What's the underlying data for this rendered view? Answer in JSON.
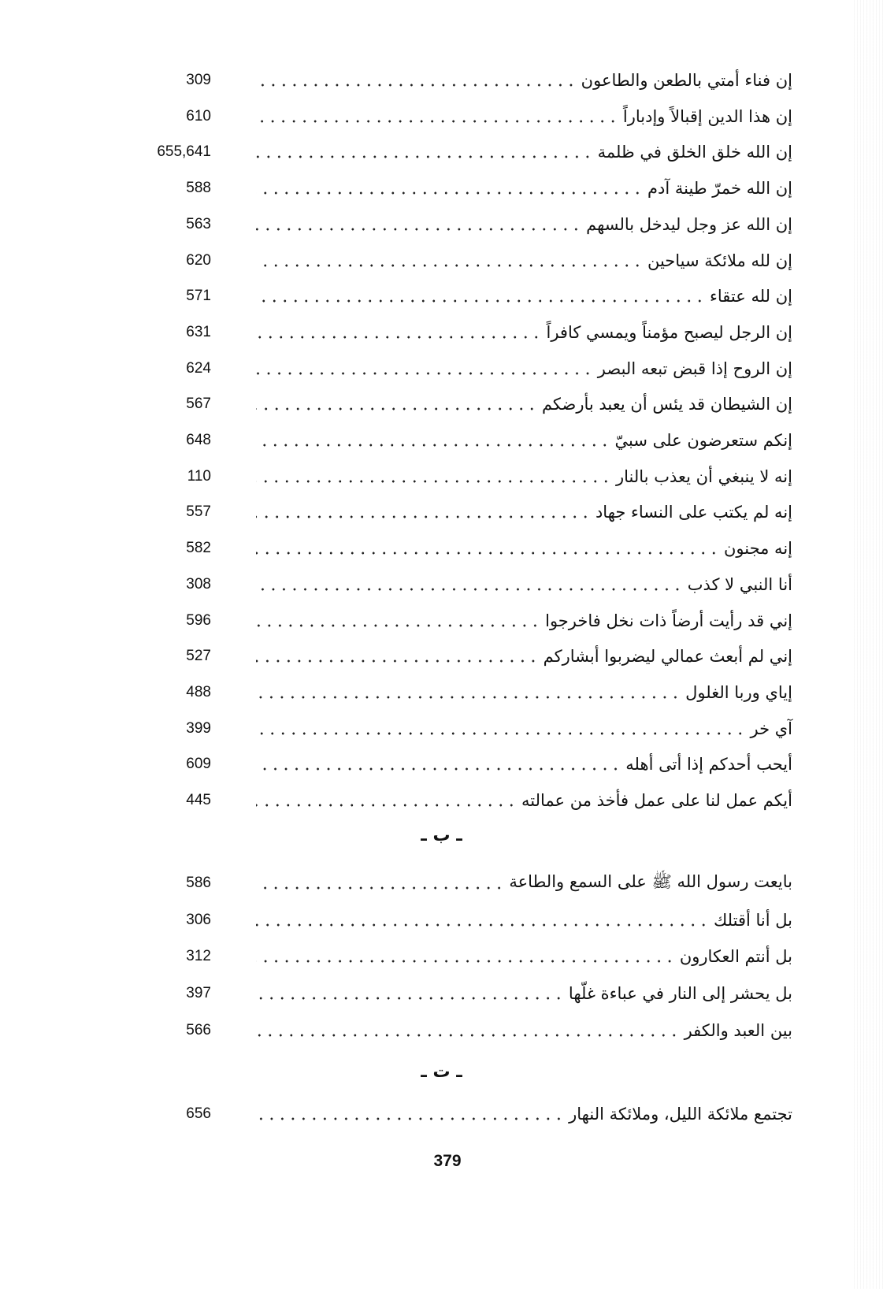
{
  "groups": [
    {
      "heading": "",
      "entries": [
        {
          "title": "إن فناء أمتي بالطعن والطاعون",
          "page": "309"
        },
        {
          "title": "إن هذا الدين إقبالاً وإدباراً",
          "page": "610"
        },
        {
          "title": "إن الله خلق الخلق في ظلمة",
          "page": "655,641"
        },
        {
          "title": "إن الله خمرّ طينة آدم",
          "page": "588"
        },
        {
          "title": "إن الله عز وجل ليدخل بالسهم",
          "page": "563"
        },
        {
          "title": "إن لله ملائكة سياحين",
          "page": "620"
        },
        {
          "title": "إن لله عتقاء",
          "page": "571"
        },
        {
          "title": "إن الرجل ليصبح مؤمناً ويمسي كافراً",
          "page": "631"
        },
        {
          "title": "إن الروح إذا قبض تبعه البصر",
          "page": "624"
        },
        {
          "title": "إن الشيطان قد يئس أن يعبد بأرضكم",
          "page": "567"
        },
        {
          "title": "إنكم ستعرضون على سبيّ",
          "page": "648"
        },
        {
          "title": "إنه لا ينبغي أن يعذب بالنار",
          "page": "110"
        },
        {
          "title": "إنه لم يكتب على النساء جهاد",
          "page": "557"
        },
        {
          "title": "إنه مجنون",
          "page": "582"
        },
        {
          "title": "أنا النبي لا كذب",
          "page": "308"
        },
        {
          "title": "إني قد رأيت أرضاً ذات نخل فاخرجوا",
          "page": "596"
        },
        {
          "title": "إني لم أبعث عمالي ليضربوا أبشاركم",
          "page": "527"
        },
        {
          "title": "إياي وربا الغلول",
          "page": "488"
        },
        {
          "title": "آي خر",
          "page": "399"
        },
        {
          "title": "أيحب أحدكم إذا أتى أهله",
          "page": "609"
        },
        {
          "title": "أيكم عمل لنا على عمل فأخذ من عمالته",
          "page": "445"
        }
      ]
    },
    {
      "heading": "ـ ب ـ",
      "entries": [
        {
          "title": "بايعت رسول الله ﷺ على السمع والطاعة",
          "page": "586"
        },
        {
          "title": "بل أنا أقتلك",
          "page": "306"
        },
        {
          "title": "بل أنتم العكارون",
          "page": "312"
        },
        {
          "title": "بل يحشر إلى النار في عباءة غلّها",
          "page": "397"
        },
        {
          "title": "بين العبد والكفر",
          "page": "566"
        }
      ]
    },
    {
      "heading": "ـ ت ـ",
      "entries": [
        {
          "title": "تجتمع ملائكة الليل، وملائكة النهار",
          "page": "656"
        }
      ]
    }
  ],
  "page_number": "379"
}
